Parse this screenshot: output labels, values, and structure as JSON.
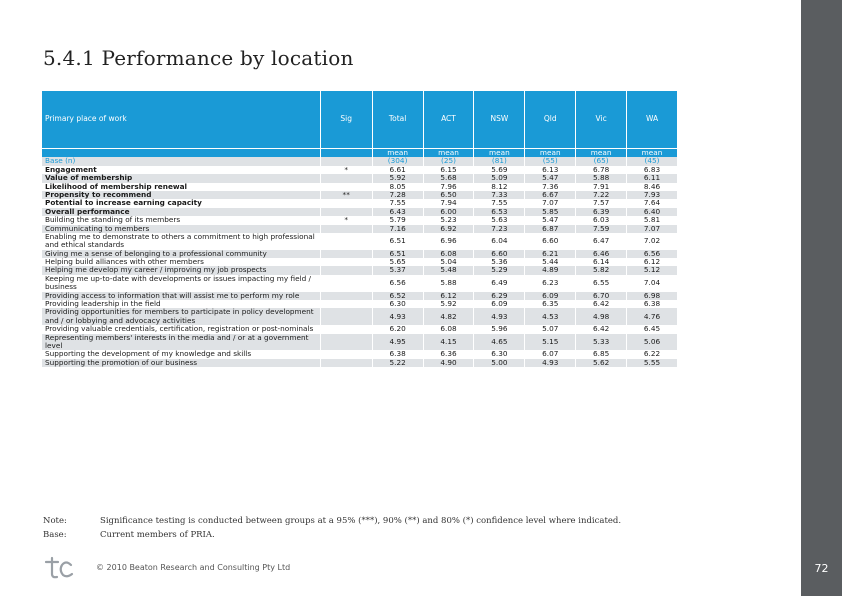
{
  "page": {
    "title": "5.4.1 Performance by location",
    "number": "72"
  },
  "table": {
    "columns": {
      "label": "Primary place of work",
      "sig": "Sig",
      "values": [
        "Total",
        "ACT",
        "NSW",
        "Qld",
        "Vic",
        "WA"
      ]
    },
    "subheader": [
      "mean",
      "mean",
      "mean",
      "mean",
      "mean",
      "mean"
    ],
    "base": {
      "label": "Base (n)",
      "sig": "",
      "values": [
        "(304)",
        "(25)",
        "(81)",
        "(55)",
        "(65)",
        "(45)"
      ]
    },
    "rows": [
      {
        "label": "Engagement",
        "sig": "*",
        "bold": true,
        "values": [
          "6.61",
          "6.15",
          "5.69",
          "6.13",
          "6.78",
          "6.83"
        ]
      },
      {
        "label": "Value of membership",
        "sig": "",
        "bold": true,
        "values": [
          "5.92",
          "5.68",
          "5.09",
          "5.47",
          "5.88",
          "6.11"
        ]
      },
      {
        "label": "Likelihood of membership renewal",
        "sig": "",
        "bold": true,
        "values": [
          "8.05",
          "7.96",
          "8.12",
          "7.36",
          "7.91",
          "8.46"
        ]
      },
      {
        "label": "Propensity to recommend",
        "sig": "**",
        "bold": true,
        "values": [
          "7.28",
          "6.50",
          "7.33",
          "6.67",
          "7.22",
          "7.93"
        ]
      },
      {
        "label": "Potential to increase earning capacity",
        "sig": "",
        "bold": true,
        "values": [
          "7.55",
          "7.94",
          "7.55",
          "7.07",
          "7.57",
          "7.64"
        ]
      },
      {
        "label": "Overall performance",
        "sig": "",
        "bold": true,
        "values": [
          "6.43",
          "6.00",
          "6.53",
          "5.85",
          "6.39",
          "6.40"
        ]
      },
      {
        "label": "Building the standing of its members",
        "sig": "*",
        "bold": false,
        "values": [
          "5.79",
          "5.23",
          "5.63",
          "5.47",
          "6.03",
          "5.81"
        ]
      },
      {
        "label": "Communicating to members",
        "sig": "",
        "bold": false,
        "values": [
          "7.16",
          "6.92",
          "7.23",
          "6.87",
          "7.59",
          "7.07"
        ]
      },
      {
        "label": "Enabling me to demonstrate to others a commitment to high professional and ethical standards",
        "sig": "",
        "bold": false,
        "values": [
          "6.51",
          "6.96",
          "6.04",
          "6.60",
          "6.47",
          "7.02"
        ]
      },
      {
        "label": "Giving me a sense of belonging to a professional community",
        "sig": "",
        "bold": false,
        "values": [
          "6.51",
          "6.08",
          "6.60",
          "6.21",
          "6.46",
          "6.56"
        ]
      },
      {
        "label": "Helping build alliances with other members",
        "sig": "",
        "bold": false,
        "values": [
          "5.65",
          "5.04",
          "5.36",
          "5.44",
          "6.14",
          "6.12"
        ]
      },
      {
        "label": "Helping me develop my career / improving my job prospects",
        "sig": "",
        "bold": false,
        "values": [
          "5.37",
          "5.48",
          "5.29",
          "4.89",
          "5.82",
          "5.12"
        ]
      },
      {
        "label": "Keeping me up-to-date with developments or issues impacting my field / business",
        "sig": "",
        "bold": false,
        "values": [
          "6.56",
          "5.88",
          "6.49",
          "6.23",
          "6.55",
          "7.04"
        ]
      },
      {
        "label": "Providing access to information that will assist me to perform my role",
        "sig": "",
        "bold": false,
        "values": [
          "6.52",
          "6.12",
          "6.29",
          "6.09",
          "6.70",
          "6.98"
        ]
      },
      {
        "label": "Providing leadership in the field",
        "sig": "",
        "bold": false,
        "values": [
          "6.30",
          "5.92",
          "6.09",
          "6.35",
          "6.42",
          "6.38"
        ]
      },
      {
        "label": "Providing opportunities for members to participate in policy development and / or lobbying and advocacy activities",
        "sig": "",
        "bold": false,
        "values": [
          "4.93",
          "4.82",
          "4.93",
          "4.53",
          "4.98",
          "4.76"
        ]
      },
      {
        "label": "Providing valuable credentials, certification, registration or post-nominals",
        "sig": "",
        "bold": false,
        "values": [
          "6.20",
          "6.08",
          "5.96",
          "5.07",
          "6.42",
          "6.45"
        ]
      },
      {
        "label": "Representing members' interests in the media and / or at a government level",
        "sig": "",
        "bold": false,
        "values": [
          "4.95",
          "4.15",
          "4.65",
          "5.15",
          "5.33",
          "5.06"
        ]
      },
      {
        "label": "Supporting the development of my knowledge and skills",
        "sig": "",
        "bold": false,
        "values": [
          "6.38",
          "6.36",
          "6.30",
          "6.07",
          "6.85",
          "6.22"
        ]
      },
      {
        "label": "Supporting the promotion of our business",
        "sig": "",
        "bold": false,
        "values": [
          "5.22",
          "4.90",
          "5.00",
          "4.93",
          "5.62",
          "5.55"
        ]
      }
    ]
  },
  "notes": [
    {
      "key": "Note:",
      "text": "Significance testing is conducted between groups at a 95% (***), 90% (**) and 80% (*) confidence level where indicated."
    },
    {
      "key": "Base:",
      "text": "Current members of PRIA."
    }
  ],
  "footer": {
    "copyright": "© 2010 Beaton Research and Consulting Pty Ltd",
    "logo_icon": "beaton-logo-icon"
  },
  "colors": {
    "header_blue": "#1a9ad6",
    "row_shade": "#dfe2e5",
    "side_bar": "#5a5d60"
  }
}
